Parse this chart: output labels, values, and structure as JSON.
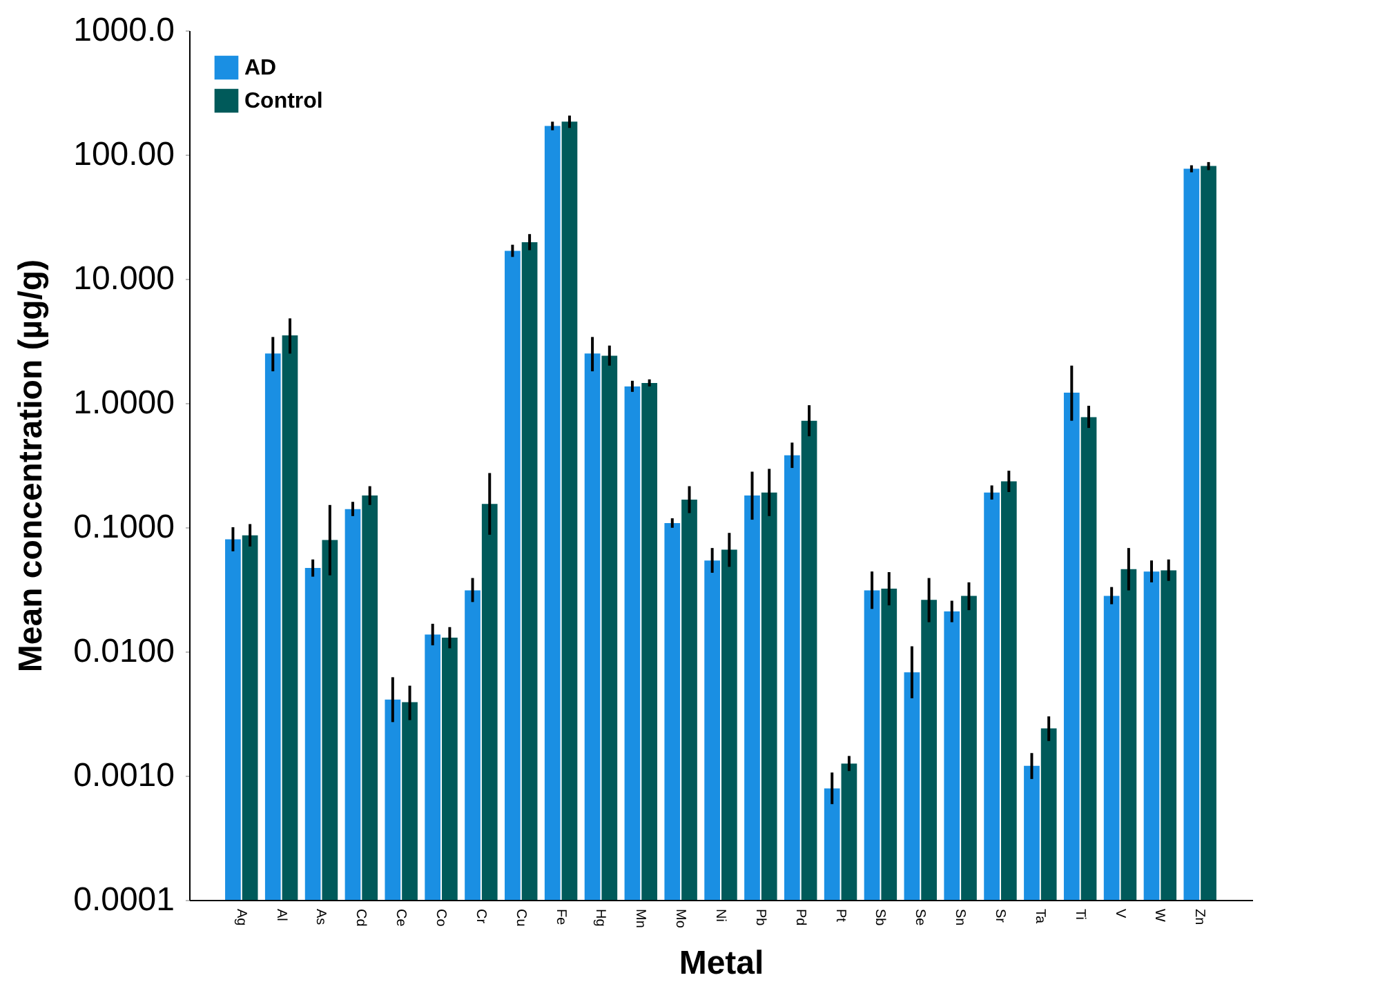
{
  "chart_data": {
    "type": "bar",
    "xlabel": "Metal",
    "ylabel": "Mean concentration (µg/g)",
    "categories": [
      "Ag",
      "Al",
      "As",
      "Cd",
      "Ce",
      "Co",
      "Cr",
      "Cu",
      "Fe",
      "Hg",
      "Mn",
      "Mo",
      "Ni",
      "Pb",
      "Pd",
      "Pt",
      "Sb",
      "Se",
      "Sn",
      "Sr",
      "Ta",
      "Ti",
      "V",
      "W",
      "Zn"
    ],
    "series": [
      {
        "name": "AD",
        "color": "#1a8fe3",
        "values": [
          0.08,
          2.5,
          0.047,
          0.14,
          0.0041,
          0.0137,
          0.031,
          16.8,
          170,
          2.5,
          1.36,
          0.108,
          0.054,
          0.18,
          0.38,
          0.00079,
          0.031,
          0.0068,
          0.021,
          0.19,
          0.0012,
          1.21,
          0.028,
          0.044,
          77
        ],
        "errors": [
          [
            0.064,
            0.1
          ],
          [
            1.8,
            3.4
          ],
          [
            0.04,
            0.055
          ],
          [
            0.123,
            0.16
          ],
          [
            0.0027,
            0.0062
          ],
          [
            0.0112,
            0.0167
          ],
          [
            0.025,
            0.039
          ],
          [
            15.0,
            18.8
          ],
          [
            157,
            184
          ],
          [
            1.8,
            3.4
          ],
          [
            1.23,
            1.51
          ],
          [
            0.099,
            0.118
          ],
          [
            0.043,
            0.068
          ],
          [
            0.115,
            0.28
          ],
          [
            0.3,
            0.48
          ],
          [
            0.00059,
            0.00106
          ],
          [
            0.022,
            0.044
          ],
          [
            0.0042,
            0.011
          ],
          [
            0.0172,
            0.0256
          ],
          [
            0.167,
            0.217
          ],
          [
            0.00094,
            0.00152
          ],
          [
            0.72,
            2.0
          ],
          [
            0.024,
            0.033
          ],
          [
            0.036,
            0.054
          ],
          [
            72,
            82
          ]
        ]
      },
      {
        "name": "Control",
        "color": "#005a5a",
        "values": [
          0.086,
          3.5,
          0.079,
          0.18,
          0.0039,
          0.0129,
          0.154,
          19.7,
          184,
          2.4,
          1.45,
          0.167,
          0.066,
          0.19,
          0.72,
          0.00125,
          0.032,
          0.026,
          0.028,
          0.234,
          0.0024,
          0.77,
          0.046,
          0.045,
          81
        ],
        "errors": [
          [
            0.07,
            0.106
          ],
          [
            2.5,
            4.8
          ],
          [
            0.041,
            0.151
          ],
          [
            0.151,
            0.214
          ],
          [
            0.0028,
            0.0053
          ],
          [
            0.0106,
            0.0157
          ],
          [
            0.087,
            0.273
          ],
          [
            17.0,
            22.9
          ],
          [
            164,
            206
          ],
          [
            2.0,
            2.9
          ],
          [
            1.36,
            1.55
          ],
          [
            0.13,
            0.214
          ],
          [
            0.048,
            0.09
          ],
          [
            0.123,
            0.295
          ],
          [
            0.54,
            0.96
          ],
          [
            0.00109,
            0.00144
          ],
          [
            0.0235,
            0.0435
          ],
          [
            0.0172,
            0.039
          ],
          [
            0.0215,
            0.036
          ],
          [
            0.192,
            0.285
          ],
          [
            0.0019,
            0.003
          ],
          [
            0.63,
            0.95
          ],
          [
            0.031,
            0.068
          ],
          [
            0.037,
            0.055
          ],
          [
            75,
            87
          ]
        ]
      }
    ],
    "log": "y",
    "ylim": [
      0.0001,
      1000
    ],
    "yticks": [
      {
        "value": 0.0001,
        "label": "0.0001"
      },
      {
        "value": 0.001,
        "label": "0.0010"
      },
      {
        "value": 0.01,
        "label": "0.0100"
      },
      {
        "value": 0.1,
        "label": "0.1000"
      },
      {
        "value": 1,
        "label": "1.0000"
      },
      {
        "value": 10,
        "label": "10.000"
      },
      {
        "value": 100,
        "label": "100.00"
      },
      {
        "value": 1000,
        "label": "1000.0"
      }
    ],
    "legend": "top left",
    "grid": false
  }
}
